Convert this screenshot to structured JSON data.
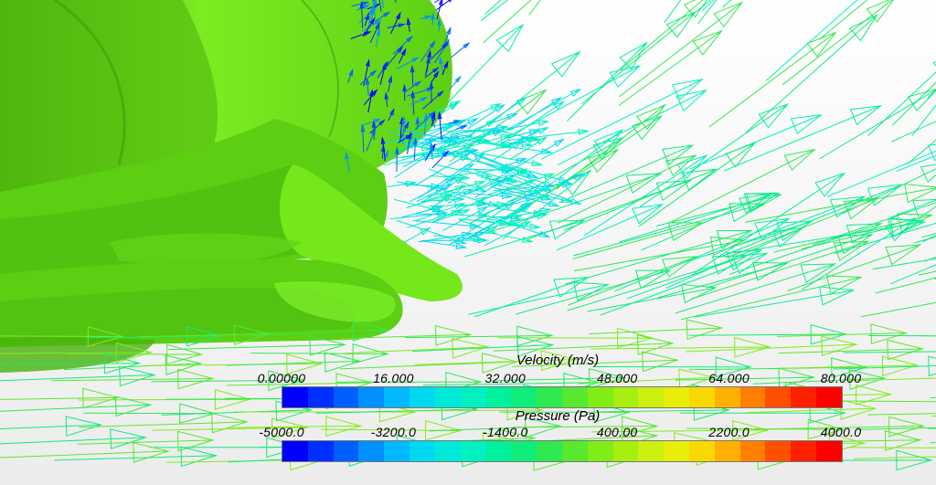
{
  "velocity_legend": {
    "title": "Velocity (m/s)",
    "ticks": [
      "0.00000",
      "16.000",
      "32.000",
      "48.000",
      "64.000",
      "80.000"
    ]
  },
  "pressure_legend": {
    "title": "Pressure (Pa)",
    "ticks": [
      "-5000.0",
      "-3200.0",
      "-1400.0",
      "400.00",
      "2200.0",
      "4000.0"
    ]
  },
  "colors": {
    "background": "#ffffff",
    "surface_light": "#74e81a",
    "surface_mid": "#5ccf12",
    "surface_dark": "#48b10c",
    "colormap": [
      "#0000ff",
      "#0030ff",
      "#0060ff",
      "#0090ff",
      "#00b8ff",
      "#00d8f0",
      "#00e8d8",
      "#00f0c0",
      "#00f09c",
      "#10ec78",
      "#30e850",
      "#58e830",
      "#80ec18",
      "#a8ee10",
      "#ccf010",
      "#e8ee08",
      "#f8d800",
      "#ffb000",
      "#ff8000",
      "#ff5000",
      "#ff2000",
      "#ff0000"
    ]
  }
}
